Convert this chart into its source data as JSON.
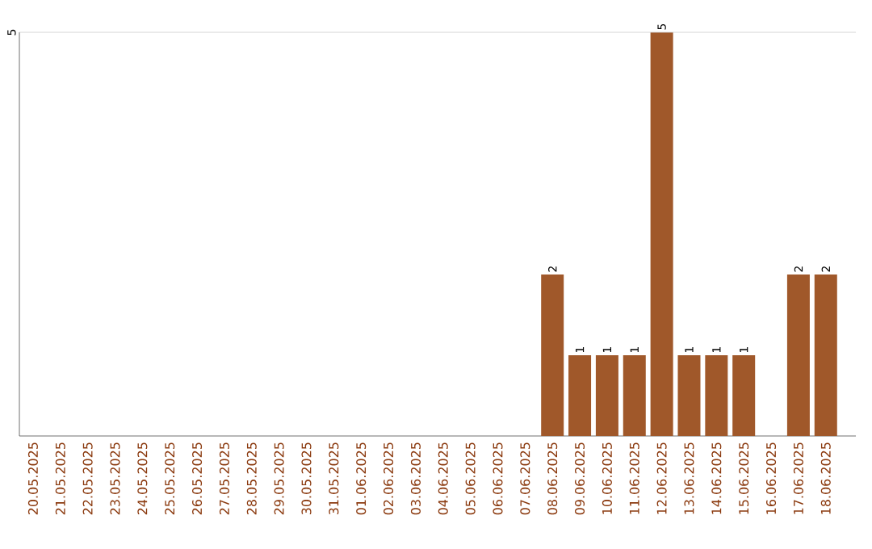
{
  "chart_data": {
    "type": "bar",
    "ylim": [
      0,
      5
    ],
    "categories": [
      "20.05.2025",
      "21.05.2025",
      "22.05.2025",
      "23.05.2025",
      "24.05.2025",
      "25.05.2025",
      "26.05.2025",
      "27.05.2025",
      "28.05.2025",
      "29.05.2025",
      "30.05.2025",
      "31.05.2025",
      "01.06.2025",
      "02.06.2025",
      "03.06.2025",
      "04.06.2025",
      "05.06.2025",
      "06.06.2025",
      "07.06.2025",
      "08.06.2025",
      "09.06.2025",
      "10.06.2025",
      "11.06.2025",
      "12.06.2025",
      "13.06.2025",
      "14.06.2025",
      "15.06.2025",
      "16.06.2025",
      "17.06.2025",
      "18.06.2025"
    ],
    "values": [
      null,
      null,
      null,
      null,
      null,
      null,
      null,
      null,
      null,
      null,
      null,
      null,
      null,
      null,
      null,
      null,
      null,
      null,
      null,
      2,
      1,
      1,
      1,
      5,
      1,
      1,
      1,
      null,
      2,
      2
    ],
    "data_labels": true,
    "color": "#a0582a",
    "ref_lines": [
      {
        "axis": "y",
        "value": 5,
        "label": "5",
        "color": "#cccccc"
      }
    ]
  }
}
